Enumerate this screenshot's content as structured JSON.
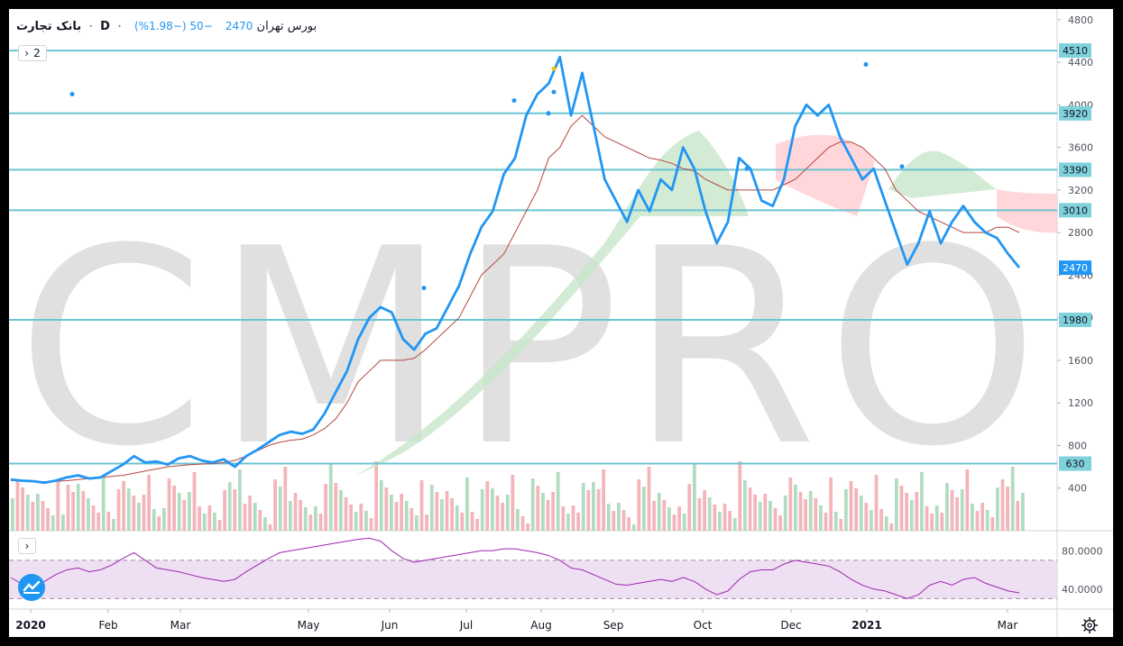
{
  "header": {
    "symbol": "بانک تجارت",
    "interval": "D",
    "exchange": "بورس تهران",
    "last": "2470",
    "change": "−50 (−1.98%)"
  },
  "pane_toggle": {
    "label": "2",
    "arrow": "›"
  },
  "colors": {
    "price": "#2196f3",
    "baseline": "#b2473d",
    "hline": "#6cc4d0",
    "vol_up": "#a5d6b7",
    "vol_down": "#f2a8ae",
    "cloud_up": "#c8e6c9",
    "cloud_down": "#ffcdd2",
    "rsi": "#9c27b0",
    "rsi_band": "#ead8ef",
    "watermark": "#d6d6d6"
  },
  "watermark": "CMPRO",
  "chart_data": {
    "type": "line",
    "title": "",
    "x_tick_labels": [
      "2020",
      "Feb",
      "Mar",
      "May",
      "Jun",
      "Jul",
      "Aug",
      "Sep",
      "Oct",
      "Dec",
      "2021",
      "Mar"
    ],
    "y_tick_labels": [
      "400",
      "800",
      "1200",
      "1600",
      "2000",
      "2400",
      "2800",
      "3200",
      "3600",
      "4000",
      "4400",
      "4800"
    ],
    "ylim": [
      0,
      4900
    ],
    "horizontal_levels": [
      4510,
      3920,
      3390,
      3010,
      1980,
      630
    ],
    "last_price": 2470,
    "series": [
      {
        "values": [
          480,
          470,
          465,
          450,
          470,
          500,
          520,
          490,
          500,
          560,
          620,
          700,
          640,
          650,
          620,
          680,
          700,
          660,
          640,
          670,
          600,
          700,
          760,
          830,
          900,
          930,
          910,
          950,
          1100,
          1300,
          1500,
          1800,
          2000,
          2100,
          2050,
          1800,
          1700,
          1850,
          1900,
          2100,
          2300,
          2600,
          2850,
          3000,
          3350,
          3500,
          3900,
          4100,
          4200,
          4450,
          3900,
          4300,
          3800,
          3300,
          3100,
          2900,
          3200,
          3000,
          3300,
          3200,
          3600,
          3400,
          3000,
          2700,
          2900,
          3500,
          3400,
          3100,
          3050,
          3300,
          3800,
          4000,
          3900,
          4000,
          3700,
          3500,
          3300,
          3400,
          3100,
          2800,
          2500,
          2700,
          3000,
          2700,
          2900,
          3050,
          2900,
          2800,
          2750,
          2600,
          2470
        ]
      },
      {
        "values": [
          470,
          470,
          460,
          460,
          465,
          470,
          480,
          490,
          500,
          510,
          520,
          540,
          560,
          580,
          600,
          610,
          620,
          625,
          630,
          640,
          660,
          700,
          750,
          800,
          830,
          850,
          860,
          900,
          960,
          1050,
          1200,
          1400,
          1500,
          1600,
          1600,
          1600,
          1620,
          1700,
          1800,
          1900,
          2000,
          2200,
          2400,
          2500,
          2600,
          2800,
          3000,
          3200,
          3500,
          3600,
          3800,
          3900,
          3800,
          3700,
          3650,
          3600,
          3550,
          3500,
          3480,
          3450,
          3400,
          3380,
          3300,
          3250,
          3200,
          3200,
          3200,
          3200,
          3200,
          3250,
          3300,
          3400,
          3500,
          3600,
          3650,
          3650,
          3600,
          3500,
          3400,
          3200,
          3100,
          3000,
          2950,
          2900,
          2850,
          2800,
          2800,
          2800,
          2850,
          2850,
          2800
        ]
      }
    ],
    "rsi": {
      "y_tick_labels": [
        "40.0000",
        "80.0000"
      ],
      "band": [
        30,
        70
      ],
      "ylim": [
        20,
        100
      ],
      "values": [
        52,
        45,
        42,
        48,
        55,
        60,
        62,
        58,
        60,
        65,
        72,
        78,
        70,
        62,
        60,
        58,
        55,
        52,
        50,
        48,
        50,
        58,
        65,
        72,
        78,
        80,
        82,
        84,
        86,
        88,
        90,
        92,
        93,
        90,
        80,
        72,
        68,
        70,
        72,
        74,
        76,
        78,
        80,
        80,
        82,
        82,
        80,
        78,
        75,
        70,
        62,
        60,
        55,
        50,
        45,
        44,
        46,
        48,
        50,
        48,
        52,
        48,
        40,
        34,
        38,
        50,
        58,
        60,
        60,
        66,
        70,
        68,
        66,
        64,
        58,
        50,
        44,
        40,
        38,
        34,
        30,
        34,
        44,
        48,
        44,
        50,
        52,
        46,
        42,
        38,
        36
      ]
    }
  }
}
